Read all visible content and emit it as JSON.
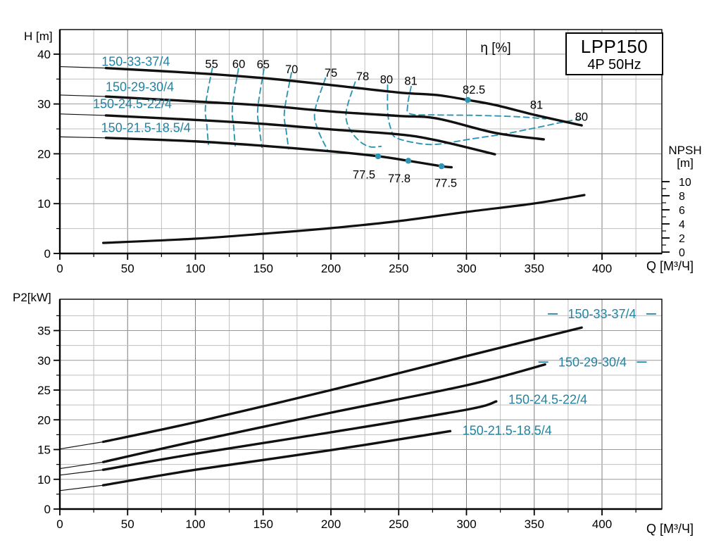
{
  "title_box": {
    "line1": "LPP150",
    "line2": "4P 50Hz"
  },
  "colors": {
    "teal_text": "#2382a2",
    "teal_line": "#2e96b4",
    "curve": "#111111",
    "grid_minor": "#bfbfbf",
    "grid_major_v": "#7d7d7d",
    "grid_major_h": "#9a9a9a",
    "frame": "#000000"
  },
  "chart_data": [
    {
      "type": "line",
      "title": "LPP150 4P 50Hz",
      "ylabel": "H [m]",
      "xlabel": "Q [М³/Ч]",
      "eta_title": "η [%]",
      "x_ticks": [
        0,
        50,
        100,
        150,
        200,
        250,
        300,
        350,
        400
      ],
      "y_ticks": [
        0,
        10,
        20,
        30,
        40
      ],
      "xlim": [
        0,
        444
      ],
      "ylim": [
        0,
        45
      ],
      "grid": true,
      "series": [
        {
          "name": "150-33-37/4",
          "label_pos": [
            56,
            38.5
          ],
          "points": [
            [
              0,
              37.5
            ],
            [
              34,
              37.2
            ],
            [
              100,
              36.2
            ],
            [
              150,
              35.2
            ],
            [
              200,
              33.8
            ],
            [
              250,
              32.3
            ],
            [
              278,
              31.8
            ],
            [
              301,
              30.8
            ],
            [
              321,
              29.8
            ],
            [
              352,
              27.7
            ],
            [
              385,
              25.7
            ]
          ]
        },
        {
          "name": "150-29-30/4",
          "label_pos": [
            59,
            33.4
          ],
          "points": [
            [
              0,
              31.8
            ],
            [
              34,
              31.5
            ],
            [
              100,
              30.5
            ],
            [
              150,
              29.7
            ],
            [
              200,
              28.5
            ],
            [
              250,
              27.6
            ],
            [
              278,
              27.1
            ],
            [
              321,
              24.2
            ],
            [
              357,
              22.9
            ]
          ]
        },
        {
          "name": "150-24.5-22/4",
          "label_pos": [
            53.5,
            30.0
          ],
          "points": [
            [
              0,
              28.0
            ],
            [
              34,
              27.7
            ],
            [
              100,
              26.8
            ],
            [
              150,
              26.0
            ],
            [
              200,
              24.9
            ],
            [
              250,
              23.9
            ],
            [
              278,
              22.7
            ],
            [
              321,
              19.9
            ]
          ]
        },
        {
          "name": "150-21.5-18.5/4",
          "label_pos": [
            63.5,
            25.2
          ],
          "points": [
            [
              0,
              23.4
            ],
            [
              34,
              23.2
            ],
            [
              100,
              22.5
            ],
            [
              150,
              21.6
            ],
            [
              200,
              20.5
            ],
            [
              235,
              19.5
            ],
            [
              257,
              18.6
            ],
            [
              282,
              17.5
            ],
            [
              289,
              17.3
            ]
          ]
        }
      ],
      "efficiency_contours": [
        {
          "value": "55",
          "label_pos": [
            112,
            38.1
          ],
          "points": [
            [
              112.5,
              37.2
            ],
            [
              107.5,
              29.7
            ],
            [
              108.5,
              25.5
            ],
            [
              109.6,
              21.9
            ]
          ]
        },
        {
          "value": "60",
          "label_pos": [
            132,
            38.1
          ],
          "points": [
            [
              131.8,
              37.1
            ],
            [
              127.3,
              29.4
            ],
            [
              128.3,
              25.2
            ],
            [
              129.4,
              21.6
            ]
          ]
        },
        {
          "value": "65",
          "label_pos": [
            150,
            38.0
          ],
          "points": [
            [
              150.6,
              37.0
            ],
            [
              146.0,
              29.0
            ],
            [
              147.3,
              24.9
            ],
            [
              149.1,
              21.3
            ]
          ]
        },
        {
          "value": "70",
          "label_pos": [
            171,
            37.0
          ],
          "points": [
            [
              170.9,
              36.3
            ],
            [
              165.7,
              28.5
            ],
            [
              167.0,
              24.6
            ],
            [
              168.8,
              21.0
            ]
          ]
        },
        {
          "value": "75",
          "label_pos": [
            200,
            36.3
          ],
          "points": [
            [
              196.0,
              35.2
            ],
            [
              188.1,
              28.5
            ],
            [
              190.6,
              24.7
            ],
            [
              197.4,
              20.8
            ]
          ]
        },
        {
          "value": "78",
          "label_pos": [
            223.4,
            35.6
          ],
          "points": [
            [
              217.9,
              34.4
            ],
            [
              211.4,
              28.7
            ],
            [
              213.0,
              25.4
            ],
            [
              220.8,
              22.6
            ],
            [
              229.0,
              21.4
            ],
            [
              237.0,
              21.5
            ]
          ]
        },
        {
          "value": "80",
          "label_pos": [
            241,
            35.0
          ],
          "points": [
            [
              241.8,
              33.8
            ],
            [
              242.0,
              28.0
            ],
            [
              244.7,
              24.6
            ],
            [
              248.3,
              23.2
            ],
            [
              262.3,
              22.2
            ],
            [
              277.9,
              21.9
            ],
            [
              303.9,
              23.0
            ],
            [
              328.3,
              24.0
            ],
            [
              354.3,
              25.4
            ],
            [
              369.9,
              26.3
            ],
            [
              384.4,
              27.0
            ]
          ]
        },
        {
          "value": "81",
          "label_pos": [
            259,
            34.7
          ],
          "points": [
            [
              259.2,
              33.5
            ],
            [
              256.6,
              29.7
            ],
            [
              258.7,
              28.0
            ],
            [
              277.9,
              27.8
            ],
            [
              309.1,
              27.7
            ],
            [
              340.3,
              27.4
            ],
            [
              358.4,
              27.0
            ]
          ]
        }
      ],
      "efficiency_right_labels": [
        {
          "value": "81",
          "pos": [
            351.7,
            29.9
          ]
        },
        {
          "value": "80",
          "pos": [
            384.9,
            27.5
          ]
        }
      ],
      "efficiency_point_labels": [
        {
          "value": "82.5",
          "q": 301.0,
          "h": 30.8,
          "label_pos": [
            305.5,
            32.9
          ]
        },
        {
          "value": "77.5",
          "q": 234.8,
          "h": 19.5,
          "label_pos": [
            224.4,
            15.9
          ]
        },
        {
          "value": "77.8",
          "q": 257.1,
          "h": 18.6,
          "label_pos": [
            250.4,
            15.1
          ]
        },
        {
          "value": "77.5",
          "q": 281.6,
          "h": 17.5,
          "label_pos": [
            284.7,
            14.2
          ]
        }
      ],
      "npsh": {
        "axis_label_1": "NPSH",
        "axis_label_2": "[m]",
        "ticks": [
          0,
          2,
          4,
          6,
          8,
          10
        ],
        "ylim": [
          0,
          10
        ],
        "points": [
          [
            32,
            1.3
          ],
          [
            100,
            1.9
          ],
          [
            150,
            2.6
          ],
          [
            200,
            3.4
          ],
          [
            250,
            4.4
          ],
          [
            300,
            5.7
          ],
          [
            350,
            6.9
          ],
          [
            387,
            8.1
          ]
        ]
      }
    },
    {
      "type": "line",
      "ylabel": "P2[kW]",
      "xlabel": "Q [М³/Ч]",
      "x_ticks": [
        0,
        50,
        100,
        150,
        200,
        250,
        300,
        350,
        400
      ],
      "y_ticks": [
        {
          "label": "0",
          "pos": 5
        },
        {
          "label": "10",
          "pos": 10
        },
        {
          "label": "15",
          "pos": 15
        },
        {
          "label": "20",
          "pos": 20
        },
        {
          "label": "25",
          "pos": 25
        },
        {
          "label": "30",
          "pos": 30
        },
        {
          "label": "35",
          "pos": 35
        }
      ],
      "xlim": [
        0,
        444
      ],
      "grid": true,
      "series": [
        {
          "name": "150-33-37/4",
          "label_pos": [
            400,
            37.8
          ],
          "label_dashes": true,
          "points": [
            [
              0,
              15.1
            ],
            [
              32,
              16.3
            ],
            [
              100,
              19.6
            ],
            [
              200,
              25.0
            ],
            [
              300,
              30.7
            ],
            [
              385,
              35.5
            ]
          ]
        },
        {
          "name": "150-29-30/4",
          "label_pos": [
            393,
            29.7
          ],
          "label_dashes": true,
          "points": [
            [
              0,
              11.8
            ],
            [
              32,
              12.9
            ],
            [
              100,
              16.4
            ],
            [
              200,
              21.2
            ],
            [
              300,
              25.8
            ],
            [
              358,
              29.3
            ]
          ]
        },
        {
          "name": "150-24.5-22/4",
          "label_pos": [
            360,
            23.4
          ],
          "label_dashes": false,
          "points": [
            [
              0,
              10.7
            ],
            [
              32,
              11.6
            ],
            [
              100,
              14.3
            ],
            [
              200,
              17.9
            ],
            [
              300,
              21.7
            ],
            [
              322,
              23.1
            ]
          ]
        },
        {
          "name": "150-21.5-18.5/4",
          "label_pos": [
            330,
            18.2
          ],
          "label_dashes": false,
          "points": [
            [
              0,
              8.1
            ],
            [
              32,
              9.0
            ],
            [
              100,
              11.6
            ],
            [
              200,
              14.9
            ],
            [
              288,
              18.1
            ]
          ]
        }
      ]
    }
  ]
}
